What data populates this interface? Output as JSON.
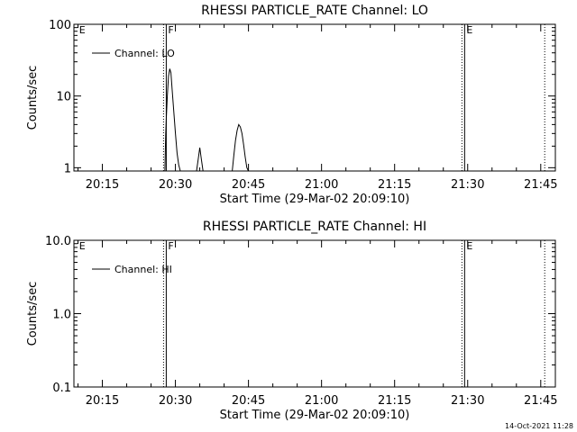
{
  "chart_data": [
    {
      "type": "line",
      "title": "RHESSI PARTICLE_RATE Channel: LO",
      "xlabel": "Start Time (29-Mar-02 20:09:10)",
      "ylabel": "Counts/sec",
      "yscale": "log",
      "ylim": [
        0.9,
        100
      ],
      "xlim": [
        "20:09:10",
        "21:48:00"
      ],
      "x_tick_labels": [
        "20:15",
        "20:30",
        "20:45",
        "21:00",
        "21:15",
        "21:30",
        "21:45"
      ],
      "y_tick_labels": [
        "1",
        "10",
        "100"
      ],
      "legend": {
        "entries": [
          "Channel: LO"
        ],
        "placement": "top-left"
      },
      "markers": [
        {
          "label": "E",
          "time": "20:09:30",
          "style": "none"
        },
        {
          "label": "F",
          "time": "20:27:45",
          "style": "solid+dotted"
        },
        {
          "label": "E",
          "time": "21:29:00",
          "style": "solid+dotted"
        },
        {
          "label": "",
          "time": "21:46:00",
          "style": "dotted"
        }
      ],
      "series": [
        {
          "name": "Channel: LO",
          "x": [
            "20:27:50",
            "20:28:00",
            "20:28:08",
            "20:28:20",
            "20:28:35",
            "20:28:50",
            "20:29:05",
            "20:29:20",
            "20:29:40",
            "20:30:00",
            "20:30:20",
            "20:30:40",
            "20:31:00",
            "20:34:20",
            "20:34:40",
            "20:35:00",
            "20:35:20",
            "20:35:40",
            "20:41:40",
            "20:42:00",
            "20:42:20",
            "20:42:40",
            "20:43:00",
            "20:43:20",
            "20:43:40",
            "20:44:00",
            "20:44:20",
            "20:44:40",
            "20:45:00"
          ],
          "y": [
            0.9,
            3.0,
            5.0,
            10.0,
            19.0,
            24.0,
            21.0,
            12.0,
            6.0,
            3.0,
            1.6,
            1.1,
            0.9,
            0.9,
            1.3,
            1.9,
            1.3,
            0.9,
            0.9,
            1.5,
            2.4,
            3.3,
            4.0,
            3.7,
            3.0,
            2.1,
            1.4,
            1.0,
            0.9
          ]
        }
      ]
    },
    {
      "type": "line",
      "title": "RHESSI PARTICLE_RATE Channel: HI",
      "xlabel": "Start Time (29-Mar-02 20:09:10)",
      "ylabel": "Counts/sec",
      "yscale": "log",
      "ylim": [
        0.1,
        10
      ],
      "xlim": [
        "20:09:10",
        "21:48:00"
      ],
      "x_tick_labels": [
        "20:15",
        "20:30",
        "20:45",
        "21:00",
        "21:15",
        "21:30",
        "21:45"
      ],
      "y_tick_labels": [
        "0.1",
        "1.0",
        "10.0"
      ],
      "legend": {
        "entries": [
          "Channel: HI"
        ],
        "placement": "top-left"
      },
      "markers": [
        {
          "label": "E",
          "time": "20:09:30",
          "style": "none"
        },
        {
          "label": "F",
          "time": "20:27:45",
          "style": "solid+dotted"
        },
        {
          "label": "E",
          "time": "21:29:00",
          "style": "solid+dotted"
        },
        {
          "label": "",
          "time": "21:46:00",
          "style": "dotted"
        }
      ],
      "series": [
        {
          "name": "Channel: HI",
          "x": [],
          "y": []
        }
      ]
    }
  ],
  "timestamp": "14-Oct-2021 11:28"
}
